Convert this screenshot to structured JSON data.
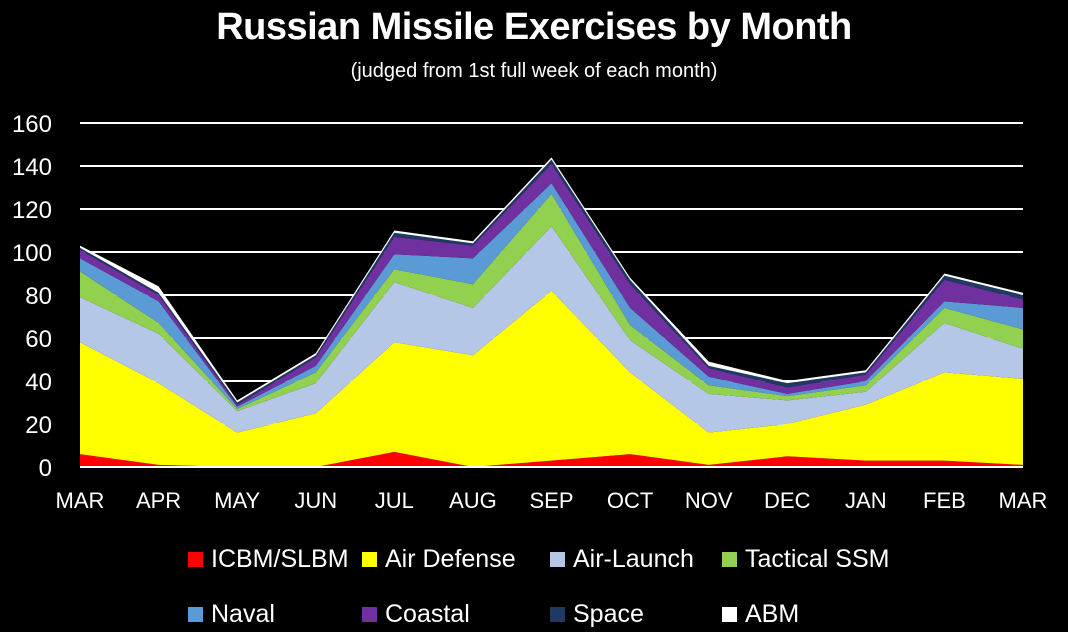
{
  "chart_data": {
    "type": "area",
    "stacked": true,
    "title": "Russian Missile Exercises by Month",
    "subtitle": "(judged from 1st full week of each month)",
    "xlabel": "",
    "ylabel": "",
    "ylim": [
      0,
      160
    ],
    "yticks": [
      0,
      20,
      40,
      60,
      80,
      100,
      120,
      140,
      160
    ],
    "grid": true,
    "legend_position": "bottom",
    "categories": [
      "MAR",
      "APR",
      "MAY",
      "JUN",
      "JUL",
      "AUG",
      "SEP",
      "OCT",
      "NOV",
      "DEC",
      "JAN",
      "FEB",
      "MAR"
    ],
    "series": [
      {
        "name": "ICBM/SLBM",
        "color": "#ff0000",
        "values": [
          6,
          1,
          0,
          0,
          7,
          0,
          3,
          6,
          1,
          5,
          3,
          3,
          1
        ]
      },
      {
        "name": "Air Defense",
        "color": "#ffff00",
        "values": [
          52,
          38,
          16,
          25,
          51,
          52,
          79,
          38,
          15,
          15,
          26,
          41,
          40
        ]
      },
      {
        "name": "Air-Launch",
        "color": "#b4c7e7",
        "values": [
          21,
          23,
          10,
          14,
          28,
          22,
          30,
          15,
          18,
          11,
          6,
          23,
          14
        ]
      },
      {
        "name": "Tactical SSM",
        "color": "#92d050",
        "values": [
          12,
          5,
          1,
          5,
          6,
          11,
          15,
          7,
          4,
          2,
          3,
          7,
          9
        ]
      },
      {
        "name": "Naval",
        "color": "#5b9bd5",
        "values": [
          6,
          10,
          1,
          3,
          7,
          12,
          5,
          8,
          4,
          1,
          2,
          3,
          10
        ]
      },
      {
        "name": "Coastal",
        "color": "#7030a0",
        "values": [
          4,
          3,
          1,
          4,
          8,
          6,
          9,
          11,
          4,
          3,
          3,
          10,
          4
        ]
      },
      {
        "name": "Space",
        "color": "#1f3864",
        "values": [
          1,
          1,
          1,
          1,
          2,
          1,
          2,
          2,
          1,
          2,
          1,
          2,
          2
        ]
      },
      {
        "name": "ABM",
        "color": "#ffffff",
        "values": [
          1,
          3,
          1,
          1,
          1,
          1,
          1,
          1,
          2,
          1,
          1,
          1,
          1
        ]
      }
    ]
  }
}
